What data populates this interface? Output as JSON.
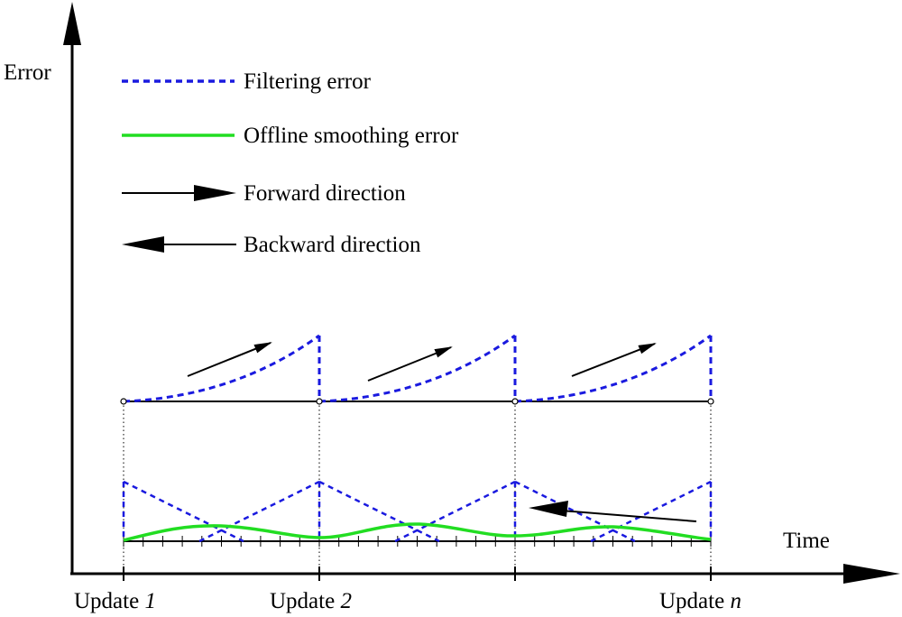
{
  "axes": {
    "y_label": "Error",
    "x_label": "Time"
  },
  "legend": {
    "filtering": "Filtering error",
    "smoothing": "Offline smoothing error",
    "forward": "Forward direction",
    "backward": "Backward direction"
  },
  "updates": [
    {
      "prefix": "Update ",
      "index": "1"
    },
    {
      "prefix": "Update ",
      "index": "2"
    },
    {
      "prefix": "Update ",
      "index": "n"
    }
  ],
  "colors": {
    "filtering": "#1a1adf",
    "smoothing": "#22dd22",
    "axis": "#000000"
  }
}
